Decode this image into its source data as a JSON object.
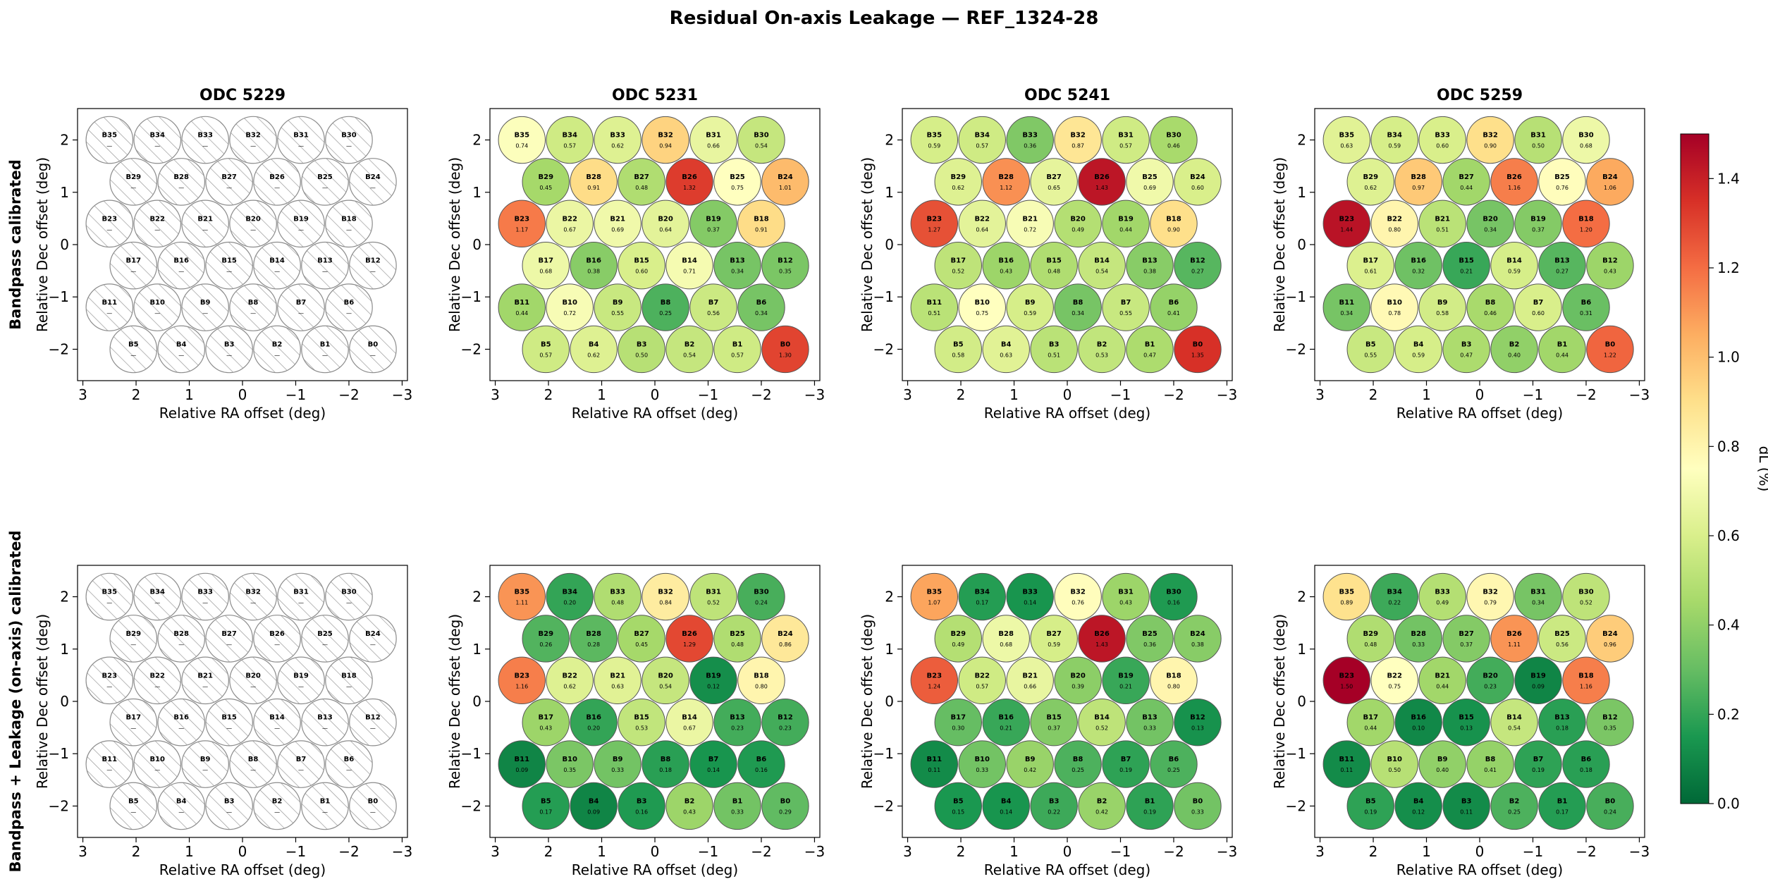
{
  "title": "Residual On-axis Leakage — REF_1324-28",
  "row_labels": [
    "Bandpass calibrated",
    "Bandpass + Leakage (on-axis) calibrated"
  ],
  "colorbar": {
    "label": "dL  (%)",
    "ticks": [
      "0.0",
      "0.2",
      "0.4",
      "0.6",
      "0.8",
      "1.0",
      "1.2",
      "1.4"
    ],
    "min": 0.0,
    "max": 1.5,
    "colormap": "RdYlGn_r"
  },
  "chart_data": {
    "type": "heatmap",
    "xlabel": "Relative RA offset (deg)",
    "ylabel": "Relative Dec offset (deg)",
    "xlim": [
      3.1,
      -3.1
    ],
    "ylim": [
      -2.6,
      2.6
    ],
    "x_ticks": [
      "3",
      "2",
      "1",
      "0",
      "−1",
      "−2",
      "−3"
    ],
    "y_ticks": [
      "−2",
      "−1",
      "0",
      "1",
      "2"
    ],
    "beams": [
      {
        "name": "B35",
        "x": 2.5,
        "y": 2.0
      },
      {
        "name": "B34",
        "x": 1.6,
        "y": 2.0
      },
      {
        "name": "B33",
        "x": 0.7,
        "y": 2.0
      },
      {
        "name": "B32",
        "x": -0.2,
        "y": 2.0
      },
      {
        "name": "B31",
        "x": -1.1,
        "y": 2.0
      },
      {
        "name": "B30",
        "x": -2.0,
        "y": 2.0
      },
      {
        "name": "B29",
        "x": 2.05,
        "y": 1.2
      },
      {
        "name": "B28",
        "x": 1.15,
        "y": 1.2
      },
      {
        "name": "B27",
        "x": 0.25,
        "y": 1.2
      },
      {
        "name": "B26",
        "x": -0.65,
        "y": 1.2
      },
      {
        "name": "B25",
        "x": -1.55,
        "y": 1.2
      },
      {
        "name": "B24",
        "x": -2.45,
        "y": 1.2
      },
      {
        "name": "B23",
        "x": 2.5,
        "y": 0.4
      },
      {
        "name": "B22",
        "x": 1.6,
        "y": 0.4
      },
      {
        "name": "B21",
        "x": 0.7,
        "y": 0.4
      },
      {
        "name": "B20",
        "x": -0.2,
        "y": 0.4
      },
      {
        "name": "B19",
        "x": -1.1,
        "y": 0.4
      },
      {
        "name": "B18",
        "x": -2.0,
        "y": 0.4
      },
      {
        "name": "B17",
        "x": 2.05,
        "y": -0.4
      },
      {
        "name": "B16",
        "x": 1.15,
        "y": -0.4
      },
      {
        "name": "B15",
        "x": 0.25,
        "y": -0.4
      },
      {
        "name": "B14",
        "x": -0.65,
        "y": -0.4
      },
      {
        "name": "B13",
        "x": -1.55,
        "y": -0.4
      },
      {
        "name": "B12",
        "x": -2.45,
        "y": -0.4
      },
      {
        "name": "B11",
        "x": 2.5,
        "y": -1.2
      },
      {
        "name": "B10",
        "x": 1.6,
        "y": -1.2
      },
      {
        "name": "B9",
        "x": 0.7,
        "y": -1.2
      },
      {
        "name": "B8",
        "x": -0.2,
        "y": -1.2
      },
      {
        "name": "B7",
        "x": -1.1,
        "y": -1.2
      },
      {
        "name": "B6",
        "x": -2.0,
        "y": -1.2
      },
      {
        "name": "B5",
        "x": 2.05,
        "y": -2.0
      },
      {
        "name": "B4",
        "x": 1.15,
        "y": -2.0
      },
      {
        "name": "B3",
        "x": 0.25,
        "y": -2.0
      },
      {
        "name": "B2",
        "x": -0.65,
        "y": -2.0
      },
      {
        "name": "B1",
        "x": -1.55,
        "y": -2.0
      },
      {
        "name": "B0",
        "x": -2.45,
        "y": -2.0
      }
    ],
    "missing_label": "—",
    "panels": [
      {
        "title": "ODC 5229",
        "row": 0,
        "values": null
      },
      {
        "title": "ODC 5231",
        "row": 0,
        "values": [
          0.74,
          0.57,
          0.62,
          0.94,
          0.66,
          0.54,
          0.45,
          0.91,
          0.48,
          1.32,
          0.75,
          1.01,
          1.17,
          0.67,
          0.69,
          0.64,
          0.37,
          0.91,
          0.68,
          0.38,
          0.6,
          0.71,
          0.34,
          0.35,
          0.44,
          0.72,
          0.55,
          0.25,
          0.56,
          0.34,
          0.57,
          0.62,
          0.5,
          0.54,
          0.57,
          1.3
        ]
      },
      {
        "title": "ODC 5241",
        "row": 0,
        "values": [
          0.59,
          0.57,
          0.36,
          0.87,
          0.57,
          0.46,
          0.62,
          1.12,
          0.65,
          1.43,
          0.69,
          0.6,
          1.27,
          0.64,
          0.72,
          0.49,
          0.44,
          0.9,
          0.52,
          0.43,
          0.48,
          0.54,
          0.38,
          0.27,
          0.51,
          0.75,
          0.59,
          0.34,
          0.55,
          0.41,
          0.58,
          0.63,
          0.51,
          0.53,
          0.47,
          1.35
        ]
      },
      {
        "title": "ODC 5259",
        "row": 0,
        "values": [
          0.63,
          0.59,
          0.6,
          0.9,
          0.5,
          0.68,
          0.62,
          0.97,
          0.44,
          1.16,
          0.76,
          1.06,
          1.44,
          0.8,
          0.51,
          0.34,
          0.37,
          1.2,
          0.61,
          0.32,
          0.21,
          0.59,
          0.27,
          0.43,
          0.34,
          0.78,
          0.58,
          0.46,
          0.6,
          0.31,
          0.55,
          0.59,
          0.47,
          0.4,
          0.44,
          1.22
        ]
      },
      {
        "title": "",
        "row": 1,
        "values": null
      },
      {
        "title": "",
        "row": 1,
        "values": [
          1.11,
          0.2,
          0.48,
          0.84,
          0.52,
          0.24,
          0.26,
          0.28,
          0.45,
          1.29,
          0.48,
          0.86,
          1.16,
          0.62,
          0.63,
          0.54,
          0.12,
          0.8,
          0.43,
          0.2,
          0.53,
          0.67,
          0.23,
          0.23,
          0.09,
          0.35,
          0.33,
          0.18,
          0.14,
          0.16,
          0.17,
          0.09,
          0.16,
          0.43,
          0.33,
          0.29
        ]
      },
      {
        "title": "",
        "row": 1,
        "values": [
          1.07,
          0.17,
          0.14,
          0.76,
          0.43,
          0.16,
          0.49,
          0.68,
          0.59,
          1.43,
          0.36,
          0.38,
          1.24,
          0.57,
          0.66,
          0.39,
          0.21,
          0.8,
          0.3,
          0.21,
          0.37,
          0.52,
          0.33,
          0.13,
          0.11,
          0.33,
          0.42,
          0.25,
          0.19,
          0.25,
          0.15,
          0.14,
          0.22,
          0.42,
          0.19,
          0.33
        ]
      },
      {
        "title": "",
        "row": 1,
        "values": [
          0.89,
          0.22,
          0.49,
          0.79,
          0.34,
          0.52,
          0.48,
          0.33,
          0.37,
          1.11,
          0.56,
          0.96,
          1.5,
          0.75,
          0.44,
          0.23,
          0.09,
          1.16,
          0.44,
          0.1,
          0.13,
          0.54,
          0.18,
          0.35,
          0.11,
          0.5,
          0.4,
          0.41,
          0.19,
          0.18,
          0.19,
          0.12,
          0.11,
          0.25,
          0.17,
          0.24
        ]
      }
    ]
  }
}
